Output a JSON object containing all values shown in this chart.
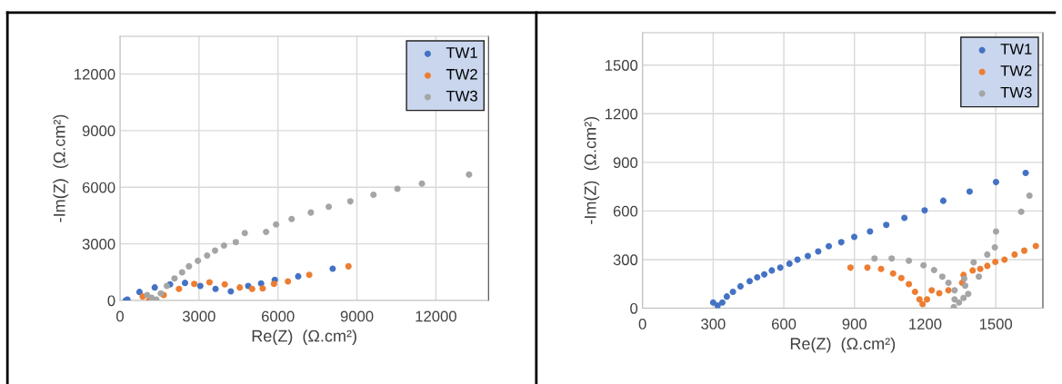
{
  "chart_data": [
    {
      "type": "scatter",
      "xlabel": "Re(Z)  (Ω.cm²)",
      "ylabel": "-Im(Z)  (Ω.cm²)",
      "xlim": [
        0,
        14000
      ],
      "ylim": [
        0,
        14000
      ],
      "xticks": [
        0,
        3000,
        6000,
        9000,
        12000
      ],
      "yticks": [
        0,
        3000,
        6000,
        9000,
        12000
      ],
      "grid": true,
      "legend": "top right",
      "marker": "circle",
      "series": [
        {
          "name": "TW1",
          "color": "#4472c4",
          "x": [
            220,
            280,
            740,
            1320,
            1900,
            2470,
            3050,
            3630,
            4210,
            4870,
            5360,
            5880,
            6770,
            8080
          ],
          "values": [
            0,
            50,
            450,
            690,
            850,
            930,
            770,
            610,
            480,
            770,
            900,
            1090,
            1280,
            1680
          ]
        },
        {
          "name": "TW2",
          "color": "#ed7d31",
          "x": [
            860,
            1100,
            1660,
            2240,
            2820,
            3400,
            3980,
            4550,
            5020,
            5420,
            5850,
            6380,
            7190,
            8680
          ],
          "values": [
            210,
            0,
            290,
            610,
            880,
            960,
            850,
            690,
            610,
            640,
            880,
            1010,
            1360,
            1810
          ]
        },
        {
          "name": "TW3",
          "color": "#a5a5a5",
          "x": [
            1030,
            1200,
            1380,
            1550,
            1780,
            2070,
            2360,
            2620,
            2960,
            3310,
            3610,
            3950,
            4400,
            4740,
            5550,
            5930,
            6520,
            7250,
            7930,
            8750,
            9630,
            10540,
            11470,
            13260
          ],
          "values": [
            290,
            140,
            50,
            370,
            770,
            1170,
            1490,
            1810,
            2100,
            2380,
            2640,
            2910,
            3090,
            3570,
            3630,
            4030,
            4320,
            4660,
            4970,
            5250,
            5600,
            5920,
            6190,
            6670
          ]
        }
      ]
    },
    {
      "type": "scatter",
      "xlabel": "Re(Z)  (Ω.cm²)",
      "ylabel": "-Im(Z)  (Ω.cm²)",
      "xlim": [
        0,
        1700
      ],
      "ylim": [
        0,
        1700
      ],
      "xticks": [
        0,
        300,
        600,
        900,
        1200,
        1500
      ],
      "yticks": [
        0,
        300,
        600,
        900,
        1200,
        1500
      ],
      "grid": true,
      "legend": "top right",
      "marker": "circle",
      "series": [
        {
          "name": "TW1",
          "color": "#4472c4",
          "x": [
            300,
            319,
            339,
            358,
            384,
            416,
            455,
            487,
            517,
            549,
            585,
            624,
            658,
            702,
            746,
            791,
            844,
            899,
            966,
            1035,
            1112,
            1198,
            1277,
            1389,
            1501,
            1627
          ],
          "values": [
            35,
            16,
            35,
            72,
            101,
            135,
            167,
            190,
            208,
            233,
            250,
            275,
            299,
            322,
            350,
            382,
            407,
            440,
            473,
            514,
            557,
            604,
            663,
            720,
            778,
            835
          ]
        },
        {
          "name": "TW2",
          "color": "#ed7d31",
          "x": [
            883,
            955,
            1013,
            1064,
            1099,
            1131,
            1157,
            1176,
            1189,
            1208,
            1228,
            1260,
            1299,
            1357,
            1363,
            1402,
            1434,
            1464,
            1498,
            1537,
            1580,
            1621,
            1670
          ],
          "values": [
            250,
            250,
            242,
            214,
            186,
            148,
            101,
            54,
            25,
            54,
            110,
            92,
            110,
            157,
            205,
            233,
            242,
            261,
            286,
            299,
            331,
            355,
            384
          ]
        },
        {
          "name": "TW3",
          "color": "#a5a5a5",
          "x": [
            985,
            1058,
            1131,
            1193,
            1238,
            1273,
            1299,
            1325,
            1325,
            1322,
            1344,
            1363,
            1383,
            1370,
            1366,
            1428,
            1406,
            1464,
            1496,
            1501,
            1608,
            1643
          ],
          "values": [
            307,
            307,
            293,
            265,
            235,
            195,
            157,
            110,
            54,
            7,
            35,
            63,
            88,
            139,
            182,
            195,
            283,
            331,
            375,
            473,
            595,
            695
          ]
        }
      ]
    }
  ]
}
